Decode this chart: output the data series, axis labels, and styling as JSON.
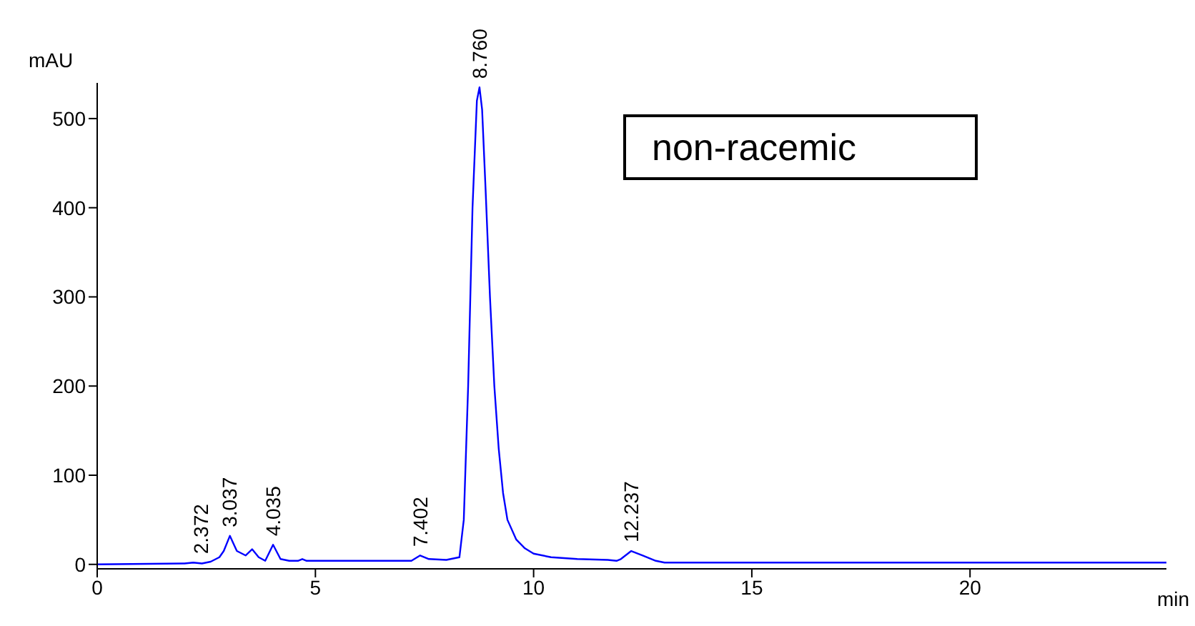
{
  "chart_data": {
    "type": "line",
    "xlabel": "min",
    "ylabel": "mAU",
    "xlim": [
      0,
      24.5
    ],
    "ylim": [
      -5,
      540
    ],
    "xticks": [
      0,
      5,
      10,
      15,
      20
    ],
    "yticks": [
      0,
      100,
      200,
      300,
      400,
      500
    ],
    "marker": "none",
    "line_style": "solid",
    "series": [
      {
        "color": "#0000ff",
        "x": [
          0,
          2.0,
          2.2,
          2.4,
          2.6,
          2.8,
          2.9,
          3.04,
          3.2,
          3.4,
          3.55,
          3.7,
          3.85,
          4.03,
          4.2,
          4.4,
          4.6,
          4.7,
          4.8,
          6.5,
          7.2,
          7.4,
          7.6,
          8.0,
          8.3,
          8.4,
          8.5,
          8.6,
          8.7,
          8.76,
          8.82,
          8.9,
          9.0,
          9.1,
          9.2,
          9.3,
          9.4,
          9.6,
          9.8,
          10.0,
          10.4,
          11.0,
          11.7,
          11.9,
          12.0,
          12.237,
          12.5,
          12.8,
          13.0,
          24.5
        ],
        "values": [
          0,
          1,
          2,
          1,
          3,
          8,
          15,
          32,
          15,
          10,
          17,
          8,
          4,
          22,
          6,
          4,
          4,
          6,
          4,
          4,
          4,
          10,
          6,
          5,
          8,
          50,
          200,
          400,
          520,
          535,
          510,
          420,
          300,
          200,
          130,
          80,
          50,
          28,
          18,
          12,
          8,
          6,
          5,
          4,
          6,
          15,
          10,
          4,
          2,
          2
        ]
      }
    ],
    "annotations": [
      {
        "text": "2.372",
        "x": 2.372,
        "y": 2
      },
      {
        "text": "3.037",
        "x": 3.037,
        "y": 32
      },
      {
        "text": "4.035",
        "x": 4.035,
        "y": 22
      },
      {
        "text": "7.402",
        "x": 7.402,
        "y": 10
      },
      {
        "text": "8.760",
        "x": 8.76,
        "y": 535
      },
      {
        "text": "12.237",
        "x": 12.237,
        "y": 15
      },
      "non-racemic"
    ]
  }
}
